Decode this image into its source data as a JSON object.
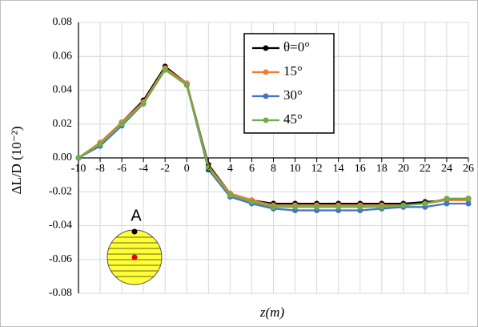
{
  "chart_data": {
    "type": "line",
    "x": [
      -10,
      -8,
      -6,
      -4,
      -2,
      0,
      2,
      4,
      6,
      8,
      10,
      12,
      14,
      16,
      18,
      20,
      22,
      24,
      26
    ],
    "series": [
      {
        "name": "θ=0°",
        "color": "#000000",
        "values": [
          0,
          0.009,
          0.021,
          0.034,
          0.054,
          0.044,
          -0.004,
          -0.021,
          -0.025,
          -0.027,
          -0.027,
          -0.027,
          -0.027,
          -0.027,
          -0.027,
          -0.027,
          -0.026,
          -0.025,
          -0.024
        ]
      },
      {
        "name": "15°",
        "color": "#ed7d31",
        "values": [
          0,
          0.009,
          0.021,
          0.033,
          0.053,
          0.044,
          -0.005,
          -0.021,
          -0.025,
          -0.028,
          -0.028,
          -0.028,
          -0.028,
          -0.028,
          -0.028,
          -0.028,
          -0.027,
          -0.025,
          -0.025
        ]
      },
      {
        "name": "30°",
        "color": "#4472c4",
        "values": [
          0,
          0.007,
          0.019,
          0.032,
          0.052,
          0.043,
          -0.007,
          -0.023,
          -0.027,
          -0.03,
          -0.031,
          -0.031,
          -0.031,
          -0.031,
          -0.03,
          -0.029,
          -0.029,
          -0.027,
          -0.027
        ]
      },
      {
        "name": "45°",
        "color": "#70ad47",
        "values": [
          0,
          0.008,
          0.02,
          0.032,
          0.052,
          0.043,
          -0.006,
          -0.022,
          -0.026,
          -0.029,
          -0.029,
          -0.029,
          -0.029,
          -0.029,
          -0.029,
          -0.028,
          -0.027,
          -0.024,
          -0.024
        ]
      }
    ],
    "xlabel": "z(m)",
    "ylabel": "ΔL/D (10⁻²)",
    "xlim": [
      -10,
      26
    ],
    "xticks": [
      -10,
      -8,
      -6,
      -4,
      -2,
      0,
      2,
      4,
      6,
      8,
      10,
      12,
      14,
      16,
      18,
      20,
      22,
      24,
      26
    ],
    "ylim": [
      -0.08,
      0.08
    ],
    "yticks": [
      -0.08,
      -0.06,
      -0.04,
      -0.02,
      {
        "value": 0,
        "label": "0.00"
      },
      0.02,
      0.04,
      0.06,
      0.08
    ],
    "grid": true,
    "legend": "upper-right",
    "annotation": "A"
  }
}
